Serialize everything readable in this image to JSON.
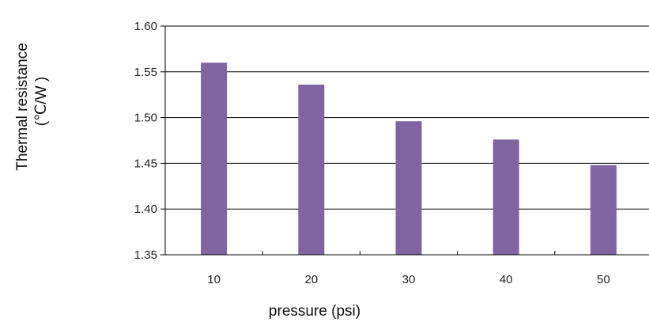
{
  "chart_data": {
    "type": "bar",
    "categories": [
      "10",
      "20",
      "30",
      "40",
      "50"
    ],
    "values": [
      1.56,
      1.536,
      1.496,
      1.476,
      1.448
    ],
    "ylim": [
      1.35,
      1.6
    ],
    "yticks": [
      "1.35",
      "1.40",
      "1.45",
      "1.50",
      "1.55",
      "1.60"
    ],
    "xlabel": "pressure (psi)",
    "ylabel_line1": "Thermal resistance",
    "ylabel_line2": "(℃/W )",
    "grid": true,
    "legend": "none",
    "bar_color": "#8064a2"
  }
}
